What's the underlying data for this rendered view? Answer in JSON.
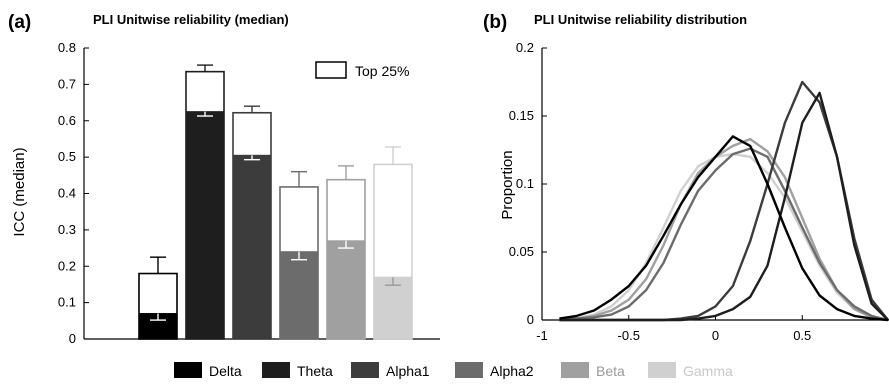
{
  "chart_data": [
    {
      "type": "bar",
      "panel": "(a)",
      "title": "PLI Unitwise reliability (median)",
      "ylabel": "ICC (median)",
      "xlabel": "",
      "ylim": [
        0,
        0.8
      ],
      "yticks": [
        "0",
        "0.1",
        "0.2",
        "0.3",
        "0.4",
        "0.5",
        "0.6",
        "0.7",
        "0.8"
      ],
      "categories": [
        "Delta",
        "Theta",
        "Alpha1",
        "Alpha2",
        "Beta",
        "Gamma"
      ],
      "colors": [
        "#000000",
        "#1e1e1e",
        "#3c3c3c",
        "#6c6c6c",
        "#a0a0a0",
        "#d0d0d0"
      ],
      "series": [
        {
          "name": "",
          "values": [
            0.07,
            0.625,
            0.505,
            0.24,
            0.27,
            0.17
          ],
          "error": [
            0.018,
            0.012,
            0.012,
            0.022,
            0.02,
            0.022
          ]
        },
        {
          "name": "Top 25%",
          "values": [
            0.18,
            0.735,
            0.622,
            0.418,
            0.438,
            0.48
          ],
          "error": [
            0.045,
            0.018,
            0.018,
            0.042,
            0.038,
            0.048
          ]
        }
      ],
      "legend": {
        "label": "Top 25%",
        "position": "top-right"
      }
    },
    {
      "type": "line",
      "panel": "(b)",
      "title": "PLI Unitwise reliability distribution",
      "ylabel": "Proportion",
      "xlabel": "",
      "xlim": [
        -1,
        1
      ],
      "ylim": [
        0,
        0.2
      ],
      "xticks": [
        "-1",
        "-0.5",
        "0",
        "0.5"
      ],
      "yticks": [
        "0",
        "0.05",
        "0.1",
        "0.15",
        "0.2"
      ],
      "x": [
        -0.9,
        -0.8,
        -0.7,
        -0.6,
        -0.5,
        -0.4,
        -0.3,
        -0.2,
        -0.1,
        0.0,
        0.1,
        0.2,
        0.3,
        0.4,
        0.5,
        0.6,
        0.7,
        0.8,
        0.9,
        1.0
      ],
      "series": [
        {
          "name": "Delta",
          "color": "#000000",
          "values": [
            0.001,
            0.003,
            0.007,
            0.015,
            0.025,
            0.04,
            0.062,
            0.085,
            0.105,
            0.12,
            0.135,
            0.128,
            0.1,
            0.068,
            0.038,
            0.018,
            0.008,
            0.003,
            0.001,
            0.0
          ]
        },
        {
          "name": "Theta",
          "color": "#1e1e1e",
          "values": [
            0.0,
            0.0,
            0.0,
            0.0,
            0.0,
            0.0,
            0.0,
            0.0,
            0.001,
            0.003,
            0.008,
            0.017,
            0.04,
            0.09,
            0.145,
            0.167,
            0.12,
            0.055,
            0.012,
            0.0
          ]
        },
        {
          "name": "Alpha1",
          "color": "#3c3c3c",
          "values": [
            0.0,
            0.0,
            0.0,
            0.0,
            0.0,
            0.0,
            0.0,
            0.001,
            0.003,
            0.01,
            0.025,
            0.058,
            0.1,
            0.145,
            0.175,
            0.16,
            0.12,
            0.06,
            0.015,
            0.0
          ]
        },
        {
          "name": "Alpha2",
          "color": "#6c6c6c",
          "values": [
            0.0,
            0.001,
            0.002,
            0.004,
            0.01,
            0.022,
            0.042,
            0.07,
            0.095,
            0.11,
            0.122,
            0.126,
            0.12,
            0.095,
            0.068,
            0.042,
            0.022,
            0.01,
            0.003,
            0.0
          ]
        },
        {
          "name": "Beta",
          "color": "#a0a0a0",
          "values": [
            0.0,
            0.001,
            0.003,
            0.007,
            0.015,
            0.03,
            0.055,
            0.085,
            0.108,
            0.12,
            0.128,
            0.133,
            0.124,
            0.105,
            0.075,
            0.045,
            0.022,
            0.008,
            0.002,
            0.0
          ]
        },
        {
          "name": "Gamma",
          "color": "#d0d0d0",
          "values": [
            0.0,
            0.001,
            0.004,
            0.01,
            0.022,
            0.042,
            0.068,
            0.095,
            0.113,
            0.12,
            0.122,
            0.12,
            0.108,
            0.09,
            0.065,
            0.04,
            0.02,
            0.008,
            0.002,
            0.0
          ]
        }
      ]
    }
  ],
  "legend": {
    "items": [
      {
        "label": "Delta",
        "color": "#000000"
      },
      {
        "label": "Theta",
        "color": "#1e1e1e"
      },
      {
        "label": "Alpha1",
        "color": "#3c3c3c"
      },
      {
        "label": "Alpha2",
        "color": "#6c6c6c"
      },
      {
        "label": "Beta",
        "color": "#a0a0a0"
      },
      {
        "label": "Gamma",
        "color": "#d0d0d0"
      }
    ]
  }
}
